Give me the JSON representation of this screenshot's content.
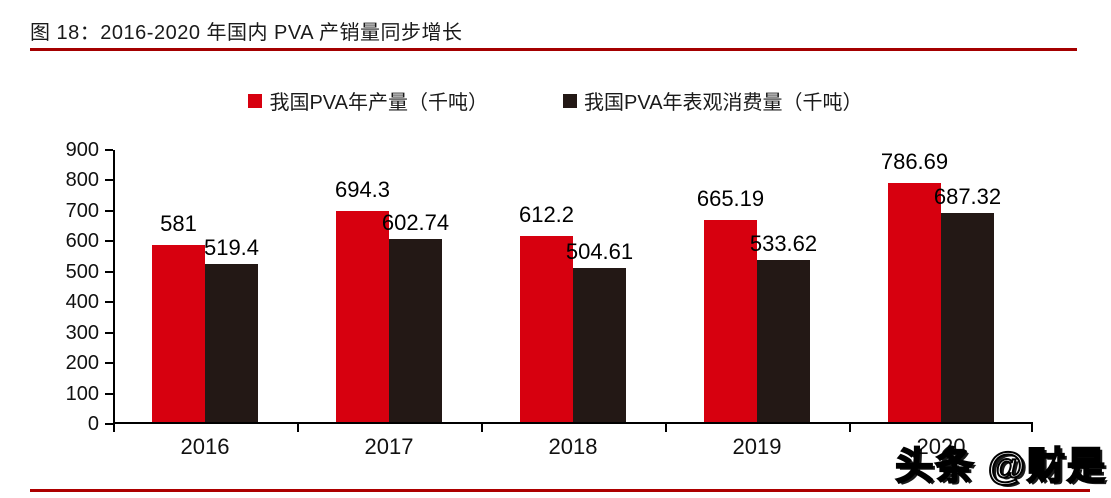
{
  "figure": {
    "title": "图 18：2016-2020 年国内 PVA 产销量同步增长",
    "watermark": "头条 @财是"
  },
  "colors": {
    "production_red": "#d7000f",
    "consumption_dark": "#231815",
    "title_rule_red": "#a40000",
    "bottom_rule_red": "#ad0000",
    "axis_black": "#000000"
  },
  "chart_data": {
    "type": "bar",
    "title": "图 18：2016-2020 年国内 PVA 产销量同步增长",
    "categories": [
      "2016",
      "2017",
      "2018",
      "2019",
      "2020"
    ],
    "series": [
      {
        "name": "我国PVA年产量（千吨）",
        "color": "#d7000f",
        "values": [
          581,
          694.3,
          612.2,
          665.19,
          786.69
        ]
      },
      {
        "name": "我国PVA年表观消费量（千吨）",
        "color": "#231815",
        "values": [
          519.4,
          602.74,
          504.61,
          533.62,
          687.32
        ]
      }
    ],
    "xlabel": "",
    "ylabel": "",
    "ylim": [
      0,
      900
    ],
    "ytick_step": 100,
    "yticks": [
      0,
      100,
      200,
      300,
      400,
      500,
      600,
      700,
      800,
      900
    ],
    "grid": false,
    "legend_position": "top",
    "data_labels": true
  }
}
